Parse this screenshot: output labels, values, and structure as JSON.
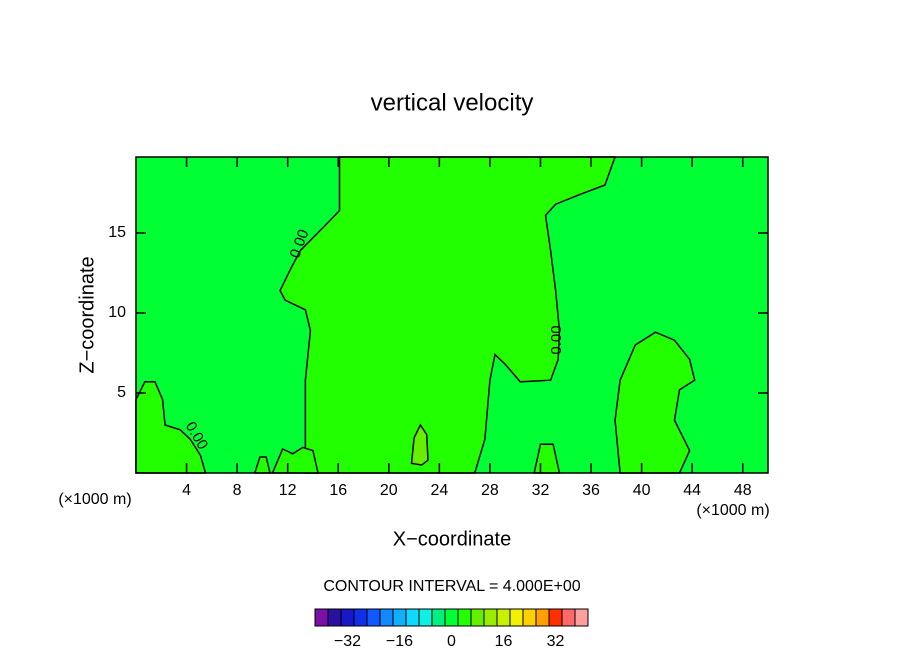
{
  "chart_data": {
    "type": "contour",
    "title": "vertical velocity",
    "xlabel": "X−coordinate",
    "ylabel": "Z−coordinate",
    "x_unit": "(×1000 m)",
    "y_unit": "(×1000 m)",
    "xlim": [
      0,
      50
    ],
    "ylim": [
      0,
      19.75
    ],
    "xticks": [
      4,
      8,
      12,
      16,
      20,
      24,
      28,
      32,
      36,
      40,
      44,
      48
    ],
    "yticks": [
      5,
      10,
      15
    ],
    "background_level": 0,
    "regions": [
      {
        "level": 4,
        "x": [
          13.4,
          13.4,
          13.8,
          13.4,
          11.8,
          11.4,
          12.2,
          13.0,
          15.0,
          16.1,
          16.1,
          37.9,
          37.1,
          35.1,
          33.2,
          32.4,
          32.8,
          33.2,
          33.5,
          33.4,
          32.8,
          30.4,
          29.2,
          28.4,
          28.0,
          27.6,
          26.8
        ],
        "y": [
          0,
          5.8,
          8.9,
          10.2,
          10.8,
          11.4,
          12.7,
          13.9,
          15.5,
          16.4,
          19.75,
          19.75,
          18.0,
          17.4,
          16.8,
          16.1,
          13.9,
          11.4,
          8.9,
          7.1,
          5.8,
          5.7,
          6.8,
          7.4,
          5.8,
          2.1,
          0
        ]
      },
      {
        "level": 4,
        "x": [
          38.3,
          37.9,
          38.3,
          39.5,
          41.1,
          42.6,
          43.8,
          44.2,
          43.0,
          42.6,
          43.8,
          43.0
        ],
        "y": [
          0,
          3.3,
          5.8,
          8.0,
          8.8,
          8.3,
          7.1,
          5.8,
          5.2,
          3.3,
          1.4,
          0
        ]
      },
      {
        "level": 4,
        "x": [
          0,
          0,
          0.7,
          1.5,
          2.1,
          2.3,
          3.5,
          4.3,
          5.1,
          5.5
        ],
        "y": [
          0,
          4.6,
          5.7,
          5.7,
          4.6,
          3.0,
          2.7,
          2.1,
          1.1,
          0
        ]
      },
      {
        "level": 4,
        "x": [
          9.4,
          9.8,
          10.3,
          10.6
        ],
        "y": [
          0,
          1.0,
          1.0,
          0
        ]
      },
      {
        "level": 4,
        "x": [
          10.8,
          11.6,
          12.4,
          13.2,
          14.0,
          14.4
        ],
        "y": [
          0,
          1.5,
          1.2,
          1.6,
          1.4,
          0
        ]
      },
      {
        "level": 4,
        "x": [
          31.5,
          32.0,
          33.0,
          33.5
        ],
        "y": [
          0,
          1.8,
          1.8,
          0
        ]
      },
      {
        "level": 8,
        "x": [
          21.8,
          22.0,
          22.5,
          23.0,
          23.1,
          22.6
        ],
        "y": [
          0.6,
          2.2,
          3.0,
          2.4,
          0.8,
          0.5
        ]
      }
    ],
    "contour_labels": [
      "0.00",
      "0.00",
      "0.00"
    ],
    "interval_text": "CONTOUR INTERVAL = 4.000E+00",
    "colorbar": {
      "levels": [
        -40,
        -36,
        -32,
        -28,
        -24,
        -20,
        -16,
        -12,
        -8,
        -4,
        0,
        4,
        8,
        12,
        16,
        20,
        24,
        28,
        32,
        36,
        40
      ],
      "colors": [
        "#7a10a8",
        "#2810a0",
        "#1818c8",
        "#1030e8",
        "#1058ff",
        "#1488ff",
        "#10b0ff",
        "#10d8ff",
        "#10f0e0",
        "#00f080",
        "#00ff33",
        "#22ff00",
        "#66f000",
        "#99ee00",
        "#c8f000",
        "#f0f000",
        "#ffd000",
        "#ffa000",
        "#ff3000",
        "#ff6868",
        "#ff9e9e"
      ],
      "ticks": [
        {
          "value": -32,
          "label": "−32"
        },
        {
          "value": -16,
          "label": "−16"
        },
        0,
        16,
        32
      ]
    }
  }
}
